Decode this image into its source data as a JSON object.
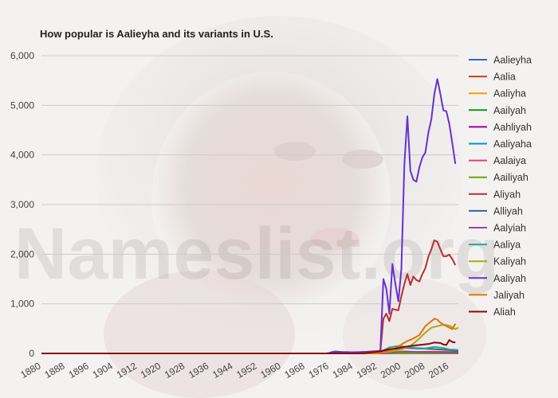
{
  "chart_data": {
    "type": "line",
    "title": "How popular is Aalieyha and its variants in U.S.",
    "xlabel": "",
    "ylabel": "",
    "watermark": "Nameslist.org",
    "xlim": [
      1880,
      2019
    ],
    "ylim": [
      0,
      6000
    ],
    "x_ticks": [
      1880,
      1888,
      1896,
      1904,
      1912,
      1920,
      1928,
      1936,
      1944,
      1952,
      1960,
      1968,
      1976,
      1984,
      1992,
      2000,
      2008,
      2016
    ],
    "y_ticks": [
      0,
      1000,
      2000,
      3000,
      4000,
      5000,
      6000
    ],
    "y_tick_labels": [
      "0",
      "1,000",
      "2,000",
      "3,000",
      "4,000",
      "5,000",
      "6,000"
    ],
    "grid": true,
    "legend_position": "right",
    "series": [
      {
        "name": "Aalieyha",
        "color": "#3366cc",
        "points": [
          [
            1880,
            0
          ],
          [
            1995,
            0
          ],
          [
            2000,
            3
          ],
          [
            2005,
            5
          ],
          [
            2010,
            4
          ],
          [
            2015,
            3
          ],
          [
            2019,
            2
          ]
        ]
      },
      {
        "name": "Aalia",
        "color": "#dc3912",
        "points": [
          [
            1880,
            0
          ],
          [
            1990,
            0
          ],
          [
            1993,
            5
          ],
          [
            1997,
            15
          ],
          [
            2000,
            25
          ],
          [
            2005,
            30
          ],
          [
            2010,
            35
          ],
          [
            2015,
            30
          ],
          [
            2019,
            25
          ]
        ]
      },
      {
        "name": "Aaliyha",
        "color": "#ff9900",
        "points": [
          [
            1880,
            0
          ],
          [
            1995,
            0
          ],
          [
            1997,
            5
          ],
          [
            2001,
            15
          ],
          [
            2005,
            20
          ],
          [
            2010,
            18
          ],
          [
            2015,
            12
          ],
          [
            2019,
            10
          ]
        ]
      },
      {
        "name": "Aailyah",
        "color": "#109618",
        "points": [
          [
            1880,
            0
          ],
          [
            1995,
            0
          ],
          [
            2001,
            5
          ],
          [
            2005,
            8
          ],
          [
            2010,
            6
          ],
          [
            2019,
            4
          ]
        ]
      },
      {
        "name": "Aahliyah",
        "color": "#990099",
        "points": [
          [
            1880,
            0
          ],
          [
            1995,
            0
          ],
          [
            2000,
            5
          ],
          [
            2005,
            8
          ],
          [
            2010,
            6
          ],
          [
            2019,
            5
          ]
        ]
      },
      {
        "name": "Aaliyaha",
        "color": "#0099c6",
        "points": [
          [
            1880,
            0
          ],
          [
            1995,
            0
          ],
          [
            2001,
            3
          ],
          [
            2005,
            5
          ],
          [
            2010,
            4
          ],
          [
            2019,
            3
          ]
        ]
      },
      {
        "name": "Aalaiya",
        "color": "#dd4477",
        "points": [
          [
            1880,
            0
          ],
          [
            2000,
            0
          ],
          [
            2005,
            3
          ],
          [
            2010,
            5
          ],
          [
            2015,
            6
          ],
          [
            2019,
            5
          ]
        ]
      },
      {
        "name": "Aailiyah",
        "color": "#66aa00",
        "points": [
          [
            1880,
            0
          ],
          [
            1996,
            0
          ],
          [
            2001,
            4
          ],
          [
            2005,
            6
          ],
          [
            2010,
            5
          ],
          [
            2019,
            4
          ]
        ]
      },
      {
        "name": "Aliyah",
        "color": "#b82e2e",
        "points": [
          [
            1880,
            0
          ],
          [
            1975,
            0
          ],
          [
            1977,
            10
          ],
          [
            1980,
            15
          ],
          [
            1985,
            20
          ],
          [
            1990,
            40
          ],
          [
            1993,
            50
          ],
          [
            1994,
            700
          ],
          [
            1995,
            800
          ],
          [
            1996,
            650
          ],
          [
            1997,
            900
          ],
          [
            1998,
            880
          ],
          [
            1999,
            870
          ],
          [
            2000,
            1150
          ],
          [
            2001,
            1400
          ],
          [
            2002,
            1600
          ],
          [
            2003,
            1380
          ],
          [
            2004,
            1550
          ],
          [
            2005,
            1480
          ],
          [
            2006,
            1450
          ],
          [
            2007,
            1600
          ],
          [
            2008,
            1720
          ],
          [
            2009,
            1950
          ],
          [
            2010,
            2100
          ],
          [
            2011,
            2280
          ],
          [
            2012,
            2250
          ],
          [
            2013,
            2100
          ],
          [
            2014,
            1960
          ],
          [
            2015,
            1960
          ],
          [
            2016,
            1990
          ],
          [
            2017,
            1900
          ],
          [
            2018,
            1780
          ]
        ]
      },
      {
        "name": "Alliyah",
        "color": "#316395",
        "points": [
          [
            1880,
            0
          ],
          [
            1990,
            0
          ],
          [
            1993,
            20
          ],
          [
            1996,
            70
          ],
          [
            1999,
            100
          ],
          [
            2002,
            110
          ],
          [
            2005,
            100
          ],
          [
            2010,
            90
          ],
          [
            2015,
            70
          ],
          [
            2019,
            50
          ]
        ]
      },
      {
        "name": "Aalyiah",
        "color": "#994499",
        "points": [
          [
            1880,
            0
          ],
          [
            1995,
            0
          ],
          [
            1997,
            20
          ],
          [
            2001,
            40
          ],
          [
            2005,
            30
          ],
          [
            2010,
            25
          ],
          [
            2019,
            15
          ]
        ]
      },
      {
        "name": "Aaliya",
        "color": "#22aa99",
        "points": [
          [
            1880,
            0
          ],
          [
            1990,
            0
          ],
          [
            1993,
            20
          ],
          [
            1996,
            120
          ],
          [
            1999,
            150
          ],
          [
            2002,
            130
          ],
          [
            2005,
            110
          ],
          [
            2008,
            100
          ],
          [
            2011,
            130
          ],
          [
            2014,
            110
          ],
          [
            2016,
            80
          ],
          [
            2019,
            70
          ]
        ]
      },
      {
        "name": "Kaliyah",
        "color": "#aaaa11",
        "points": [
          [
            1880,
            0
          ],
          [
            1990,
            0
          ],
          [
            1995,
            20
          ],
          [
            2000,
            80
          ],
          [
            2003,
            150
          ],
          [
            2006,
            300
          ],
          [
            2008,
            420
          ],
          [
            2010,
            520
          ],
          [
            2012,
            550
          ],
          [
            2014,
            580
          ],
          [
            2016,
            560
          ],
          [
            2017,
            520
          ],
          [
            2018,
            490
          ],
          [
            2019,
            520
          ]
        ]
      },
      {
        "name": "Aaliyah",
        "color": "#6633cc",
        "points": [
          [
            1880,
            0
          ],
          [
            1975,
            0
          ],
          [
            1976,
            10
          ],
          [
            1977,
            30
          ],
          [
            1978,
            40
          ],
          [
            1980,
            30
          ],
          [
            1984,
            25
          ],
          [
            1988,
            30
          ],
          [
            1992,
            40
          ],
          [
            1993,
            60
          ],
          [
            1994,
            1500
          ],
          [
            1995,
            1300
          ],
          [
            1996,
            800
          ],
          [
            1997,
            1800
          ],
          [
            1998,
            1400
          ],
          [
            1999,
            1050
          ],
          [
            2000,
            1700
          ],
          [
            2001,
            3800
          ],
          [
            2002,
            4780
          ],
          [
            2003,
            3680
          ],
          [
            2004,
            3500
          ],
          [
            2005,
            3460
          ],
          [
            2006,
            3750
          ],
          [
            2007,
            3950
          ],
          [
            2008,
            4050
          ],
          [
            2009,
            4450
          ],
          [
            2010,
            4720
          ],
          [
            2011,
            5230
          ],
          [
            2012,
            5530
          ],
          [
            2013,
            5230
          ],
          [
            2014,
            4900
          ],
          [
            2015,
            4880
          ],
          [
            2016,
            4620
          ],
          [
            2017,
            4230
          ],
          [
            2018,
            3820
          ]
        ]
      },
      {
        "name": "Jaliyah",
        "color": "#e67300",
        "points": [
          [
            1880,
            0
          ],
          [
            1992,
            0
          ],
          [
            1995,
            30
          ],
          [
            1998,
            100
          ],
          [
            2000,
            180
          ],
          [
            2002,
            250
          ],
          [
            2004,
            300
          ],
          [
            2006,
            370
          ],
          [
            2008,
            550
          ],
          [
            2010,
            650
          ],
          [
            2011,
            700
          ],
          [
            2012,
            680
          ],
          [
            2013,
            620
          ],
          [
            2014,
            580
          ],
          [
            2015,
            550
          ],
          [
            2016,
            520
          ],
          [
            2017,
            490
          ],
          [
            2018,
            600
          ]
        ]
      },
      {
        "name": "Aliah",
        "color": "#8b0707",
        "points": [
          [
            1880,
            0
          ],
          [
            1985,
            0
          ],
          [
            1988,
            5
          ],
          [
            1990,
            20
          ],
          [
            1993,
            40
          ],
          [
            1995,
            80
          ],
          [
            1997,
            90
          ],
          [
            2000,
            120
          ],
          [
            2003,
            150
          ],
          [
            2006,
            170
          ],
          [
            2009,
            190
          ],
          [
            2011,
            220
          ],
          [
            2013,
            210
          ],
          [
            2014,
            180
          ],
          [
            2015,
            170
          ],
          [
            2016,
            270
          ],
          [
            2017,
            230
          ],
          [
            2018,
            220
          ]
        ]
      }
    ]
  }
}
